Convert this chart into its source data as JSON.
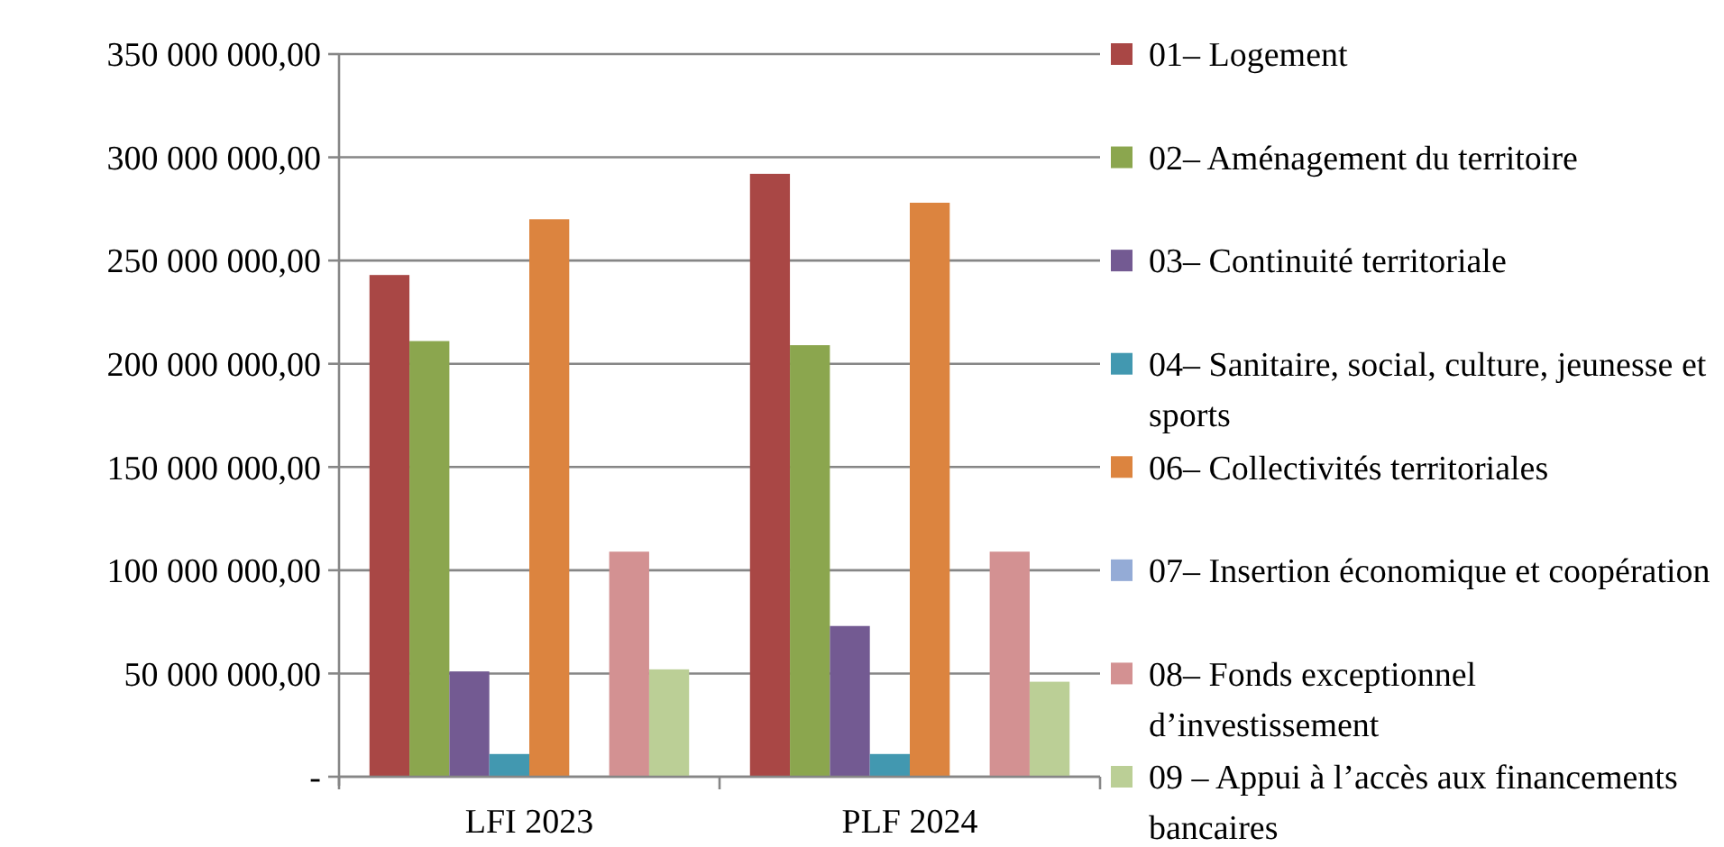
{
  "chart_data": {
    "type": "bar",
    "categories": [
      "LFI 2023",
      "PLF 2024"
    ],
    "series": [
      {
        "name": "01– Logement",
        "color": "#a94745",
        "values": [
          243000000,
          292000000
        ]
      },
      {
        "name": "02– Aménagement du territoire",
        "color": "#8ba64e",
        "values": [
          211000000,
          209000000
        ]
      },
      {
        "name": "03– Continuité territoriale",
        "color": "#735a92",
        "values": [
          51000000,
          73000000
        ]
      },
      {
        "name": "04– Sanitaire, social, culture, jeunesse et sports",
        "color": "#4298b0",
        "values": [
          11000000,
          11000000
        ]
      },
      {
        "name": "06– Collectivités territoriales",
        "color": "#dc843f",
        "values": [
          270000000,
          278000000
        ]
      },
      {
        "name": "07– Insertion économique et coopération",
        "color": "#94abd6",
        "values": [
          0,
          0
        ]
      },
      {
        "name": "08– Fonds exceptionnel d’investissement",
        "color": "#d39192",
        "values": [
          109000000,
          109000000
        ]
      },
      {
        "name": "09 – Appui à l’accès aux financements bancaires",
        "color": "#bbcf96",
        "values": [
          52000000,
          46000000
        ]
      }
    ],
    "ylim": [
      0,
      350000000
    ],
    "yticks": [
      {
        "value": 0,
        "label": "-"
      },
      {
        "value": 50000000,
        "label": "50 000 000,00"
      },
      {
        "value": 100000000,
        "label": "100 000 000,00"
      },
      {
        "value": 150000000,
        "label": "150 000 000,00"
      },
      {
        "value": 200000000,
        "label": "200 000 000,00"
      },
      {
        "value": 250000000,
        "label": "250 000 000,00"
      },
      {
        "value": 300000000,
        "label": "300 000 000,00"
      },
      {
        "value": 350000000,
        "label": "350 000 000,00"
      }
    ],
    "grid": "y",
    "legend": "right"
  }
}
